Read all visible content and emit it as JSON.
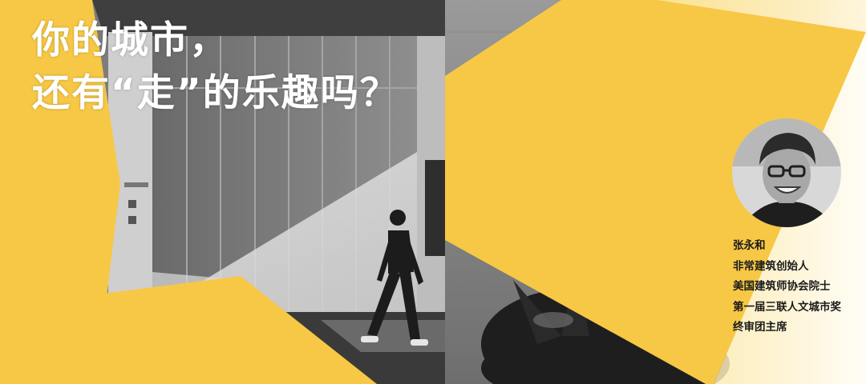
{
  "headline": {
    "line1": "你的城市，",
    "line2": "还有“走”的乐趣吗？"
  },
  "profile": {
    "name": "张永和",
    "titles": [
      "非常建筑创始人",
      "美国建筑师协会院士",
      "第一届三联人文城市奖",
      "终审团主席"
    ]
  },
  "colors": {
    "accent_yellow": "#f7c845",
    "cream_background": "#fdf6dc",
    "photo_gray": "#8a8a8a"
  }
}
